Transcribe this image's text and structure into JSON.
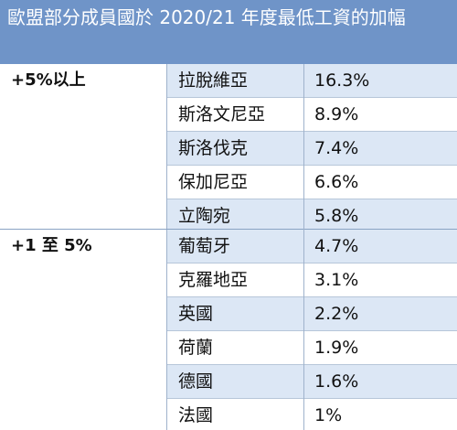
{
  "title": "歐盟部分成員國於 2020/21 年度最低工資的加幅",
  "groups": [
    {
      "label": "+5%以上",
      "rows": [
        {
          "country": "拉脫維亞",
          "value": "16.3%"
        },
        {
          "country": "斯洛文尼亞",
          "value": "8.9%"
        },
        {
          "country": "斯洛伐克",
          "value": "7.4%"
        },
        {
          "country": "保加尼亞",
          "value": "6.6%"
        },
        {
          "country": "立陶宛",
          "value": "5.8%"
        }
      ]
    },
    {
      "label": "+1 至 5%",
      "rows": [
        {
          "country": "葡萄牙",
          "value": "4.7%"
        },
        {
          "country": "克羅地亞",
          "value": "3.1%"
        },
        {
          "country": "英國",
          "value": "2.2%"
        },
        {
          "country": "荷蘭",
          "value": "1.9%"
        },
        {
          "country": "德國",
          "value": "1.6%"
        },
        {
          "country": "法國",
          "value": "1%"
        }
      ]
    }
  ]
}
